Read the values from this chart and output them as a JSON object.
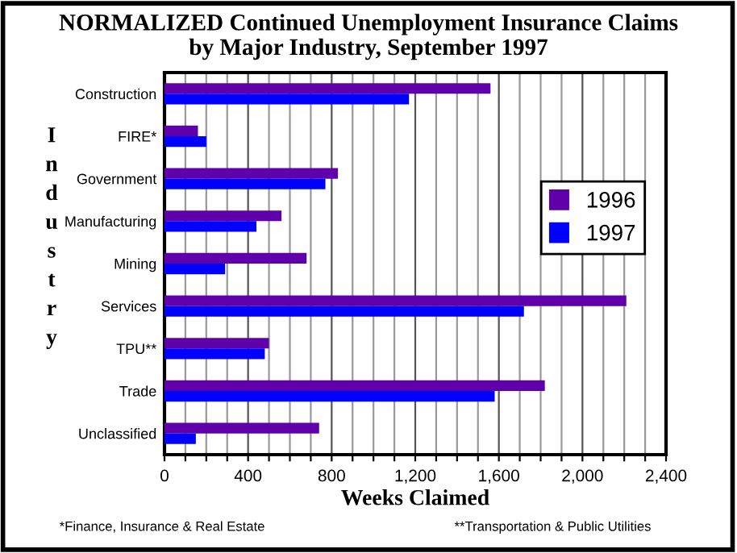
{
  "chart_data": {
    "type": "bar",
    "orientation": "horizontal",
    "title": "NORMALIZED Continued Unemployment Insurance Claims\nby Major Industry, September 1997",
    "xlabel": "Weeks Claimed",
    "ylabel": "Industry",
    "categories": [
      "Construction",
      "FIRE*",
      "Government",
      "Manufacturing",
      "Mining",
      "Services",
      "TPU**",
      "Trade",
      "Unclassified"
    ],
    "series": [
      {
        "name": "1996",
        "color": "#5f00aa",
        "values": [
          1560,
          160,
          830,
          560,
          680,
          2210,
          500,
          1820,
          740
        ]
      },
      {
        "name": "1997",
        "color": "#0000ff",
        "values": [
          1170,
          200,
          770,
          440,
          290,
          1720,
          480,
          1580,
          150
        ]
      }
    ],
    "xlim": [
      0,
      2400
    ],
    "xticks": [
      0,
      {
        "value": 100,
        "label": null
      },
      {
        "value": 200,
        "label": null
      },
      {
        "value": 300,
        "label": null
      },
      400,
      {
        "value": 500,
        "label": null
      },
      {
        "value": 600,
        "label": null
      },
      {
        "value": 700,
        "label": null
      },
      {
        "value": 800,
        "label": "800"
      },
      {
        "value": 900,
        "label": null
      },
      {
        "value": 1000,
        "label": null
      },
      {
        "value": 1100,
        "label": null
      },
      {
        "value": 1200,
        "label": "1,200"
      },
      {
        "value": 1300,
        "label": null
      },
      {
        "value": 1400,
        "label": null
      },
      {
        "value": 1500,
        "label": null
      },
      {
        "value": 1600,
        "label": "1,600"
      },
      {
        "value": 1700,
        "label": null
      },
      {
        "value": 1800,
        "label": null
      },
      {
        "value": 1900,
        "label": null
      },
      {
        "value": 2000,
        "label": "2,000"
      },
      {
        "value": 2100,
        "label": null
      },
      {
        "value": 2200,
        "label": null
      },
      {
        "value": 2300,
        "label": null
      },
      {
        "value": 2400,
        "label": "2,400"
      }
    ],
    "grid": "x",
    "legend": "right",
    "annotations": [
      "*Finance, Insurance & Real Estate",
      "**Transportation & Public Utilities"
    ]
  }
}
